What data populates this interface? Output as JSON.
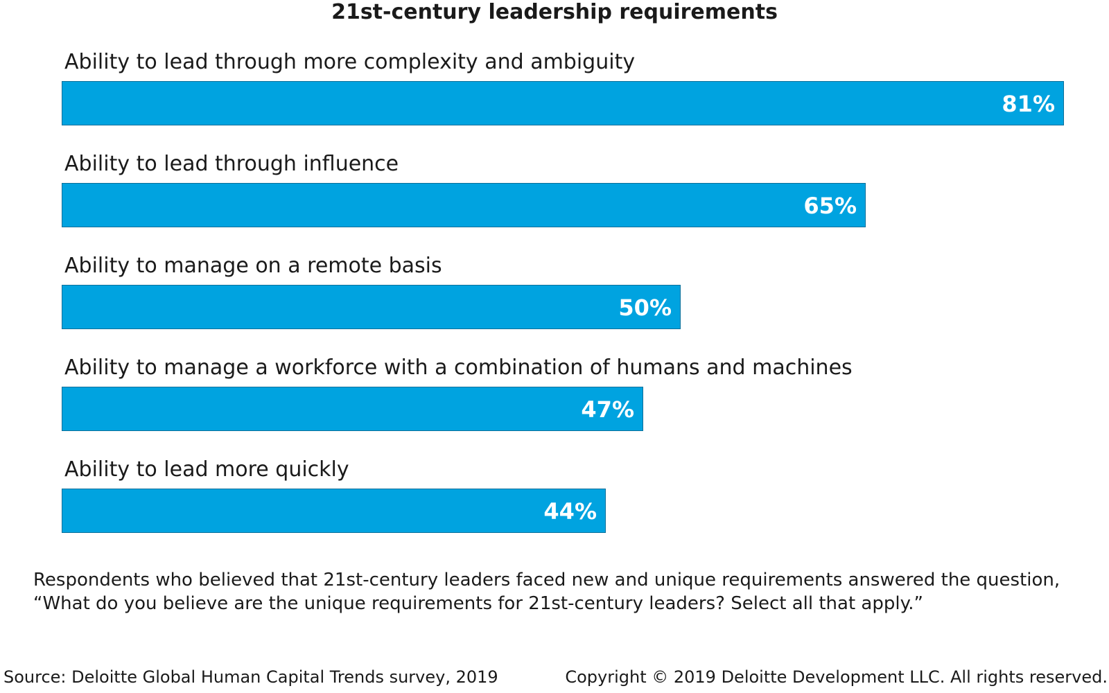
{
  "chart_data": {
    "type": "bar",
    "orientation": "horizontal",
    "title": "21st-century leadership requirements",
    "categories": [
      "Ability to lead through more complexity and ambiguity",
      "Ability to lead through influence",
      "Ability to manage on a remote basis",
      "Ability to manage a workforce with a combination of humans and machines",
      "Ability to lead more quickly"
    ],
    "values": [
      81,
      65,
      50,
      47,
      44
    ],
    "value_labels": [
      "81%",
      "65%",
      "50%",
      "47%",
      "44%"
    ],
    "unit": "%",
    "xlim": [
      0,
      81
    ],
    "grid": false,
    "legend": "none",
    "bar_color": "#00a3e0"
  },
  "note": {
    "line1": "Respondents who believed that 21st-century leaders faced new and unique requirements answered the question,",
    "line2": "“What do you believe are the unique requirements for 21st-century leaders? Select all that apply.”"
  },
  "footer": {
    "source": "Source: Deloitte Global Human Capital Trends survey, 2019",
    "copyright": "Copyright © 2019 Deloitte Development LLC. All rights reserved."
  }
}
